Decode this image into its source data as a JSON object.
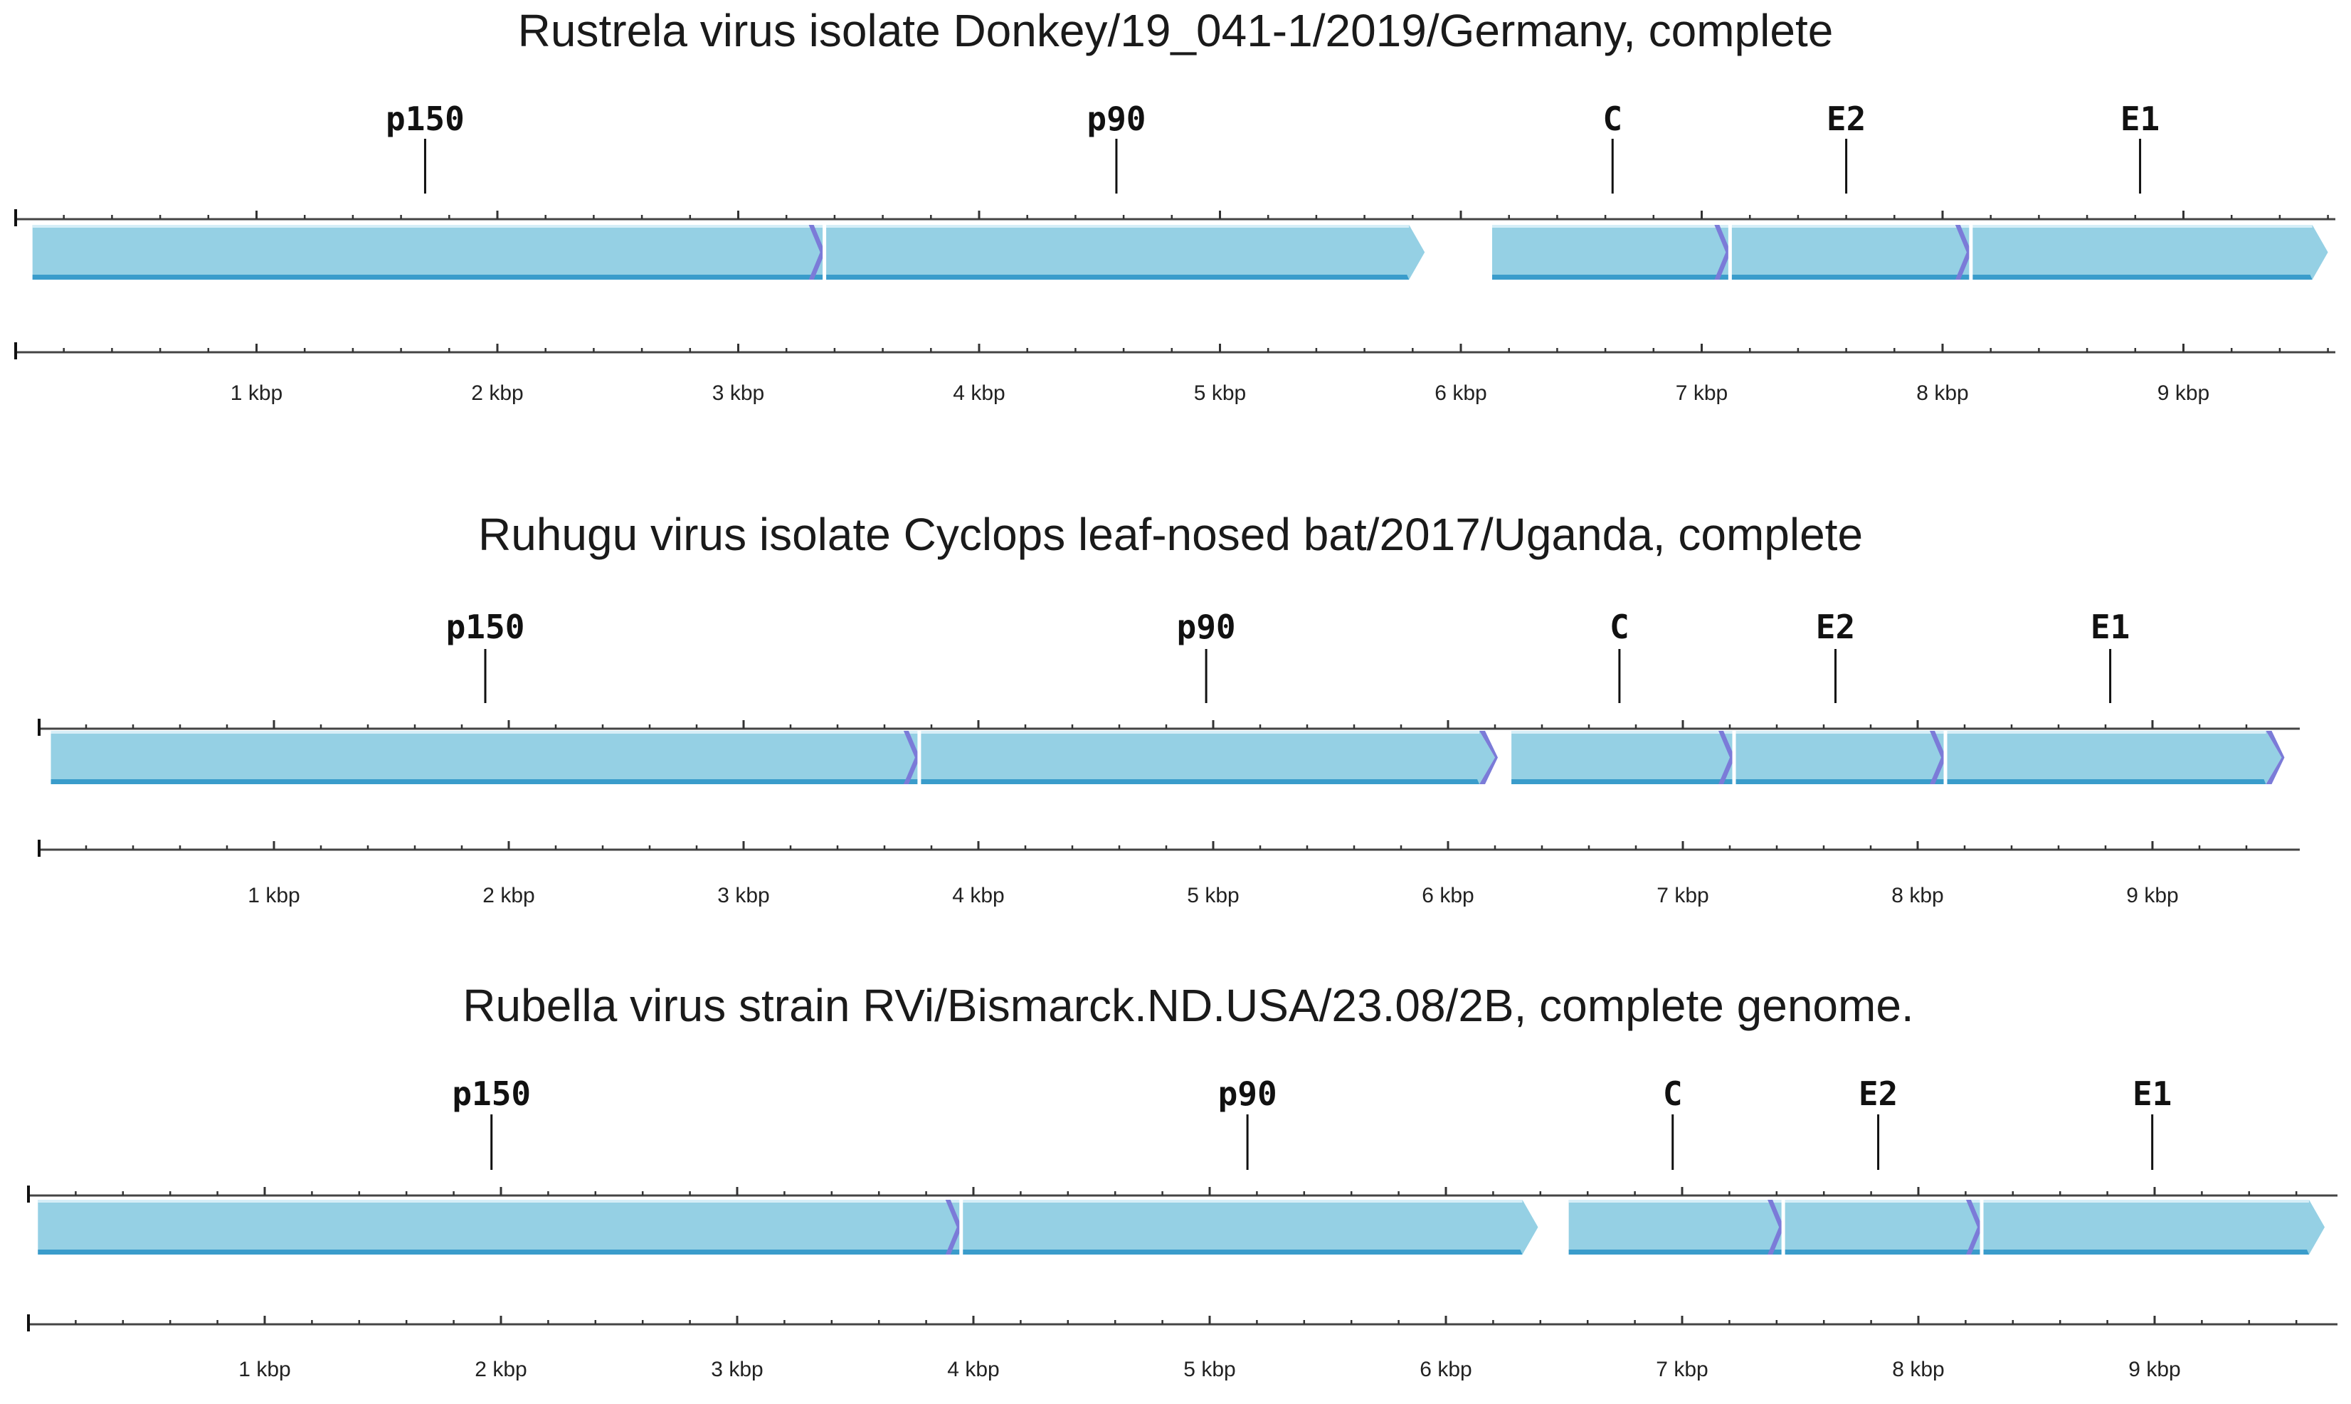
{
  "figure": {
    "colors": {
      "gene_fill": "#95d0e4",
      "gene_edge": "#3a9ccb",
      "gene_highlight": "#d6eef7",
      "junction": "#7b7bd8",
      "axis": "#444444"
    },
    "maps": [
      {
        "title": "Rustrela virus isolate Donkey/19_041-1/2019/Germany, complete",
        "genome_kbp": 9.65,
        "tick_labels": [
          "1 kbp",
          "2 kbp",
          "3 kbp",
          "4 kbp",
          "5 kbp",
          "6 kbp",
          "7 kbp",
          "8 kbp",
          "9 kbp"
        ],
        "tick_values_kbp": [
          1,
          2,
          3,
          4,
          5,
          6,
          7,
          8,
          9
        ],
        "orfs": [
          {
            "start_kbp": 0.07,
            "end_kbp": 5.85,
            "end_junction": false
          },
          {
            "start_kbp": 6.13,
            "end_kbp": 9.6,
            "end_junction": false
          }
        ],
        "genes": [
          {
            "label": "p150",
            "start_kbp": 0.07,
            "end_kbp": 3.34,
            "label_kbp": 1.7
          },
          {
            "label": "p90",
            "start_kbp": 3.34,
            "end_kbp": 5.85,
            "label_kbp": 4.57
          },
          {
            "label": "C",
            "start_kbp": 6.13,
            "end_kbp": 7.1,
            "label_kbp": 6.63
          },
          {
            "label": "E2",
            "start_kbp": 7.1,
            "end_kbp": 8.1,
            "label_kbp": 7.6
          },
          {
            "label": "E1",
            "start_kbp": 8.1,
            "end_kbp": 9.6,
            "label_kbp": 8.82
          }
        ]
      },
      {
        "title": "Ruhugu virus isolate Cyclops leaf-nosed bat/2017/Uganda, complete",
        "genome_kbp": 9.78,
        "tick_labels": [
          "1 kbp",
          "2 kbp",
          "3 kbp",
          "4 kbp",
          "5 kbp",
          "6 kbp",
          "7 kbp",
          "8 kbp",
          "9 kbp"
        ],
        "tick_values_kbp": [
          1,
          2,
          3,
          4,
          5,
          6,
          7,
          8,
          9
        ],
        "orfs": [
          {
            "start_kbp": 0.05,
            "end_kbp": 6.2,
            "end_junction": true
          },
          {
            "start_kbp": 6.27,
            "end_kbp": 9.55,
            "end_junction": true
          }
        ],
        "genes": [
          {
            "label": "p150",
            "start_kbp": 0.05,
            "end_kbp": 3.73,
            "label_kbp": 1.9
          },
          {
            "label": "p90",
            "start_kbp": 3.73,
            "end_kbp": 6.2,
            "label_kbp": 4.97
          },
          {
            "label": "C",
            "start_kbp": 6.27,
            "end_kbp": 7.2,
            "label_kbp": 6.73
          },
          {
            "label": "E2",
            "start_kbp": 7.2,
            "end_kbp": 8.1,
            "label_kbp": 7.65
          },
          {
            "label": "E1",
            "start_kbp": 8.1,
            "end_kbp": 9.55,
            "label_kbp": 8.82
          }
        ]
      },
      {
        "title": "Rubella virus strain RVi/Bismarck.ND.USA/23.08/2B, complete genome.",
        "genome_kbp": 9.76,
        "tick_labels": [
          "1 kbp",
          "2 kbp",
          "3 kbp",
          "4 kbp",
          "5 kbp",
          "6 kbp",
          "7 kbp",
          "8 kbp",
          "9 kbp"
        ],
        "tick_values_kbp": [
          1,
          2,
          3,
          4,
          5,
          6,
          7,
          8,
          9
        ],
        "orfs": [
          {
            "start_kbp": 0.04,
            "end_kbp": 6.39,
            "end_junction": false
          },
          {
            "start_kbp": 6.52,
            "end_kbp": 9.72,
            "end_junction": false
          }
        ],
        "genes": [
          {
            "label": "p150",
            "start_kbp": 0.04,
            "end_kbp": 3.93,
            "label_kbp": 1.96
          },
          {
            "label": "p90",
            "start_kbp": 3.93,
            "end_kbp": 6.39,
            "label_kbp": 5.16
          },
          {
            "label": "C",
            "start_kbp": 6.52,
            "end_kbp": 7.41,
            "label_kbp": 6.96
          },
          {
            "label": "E2",
            "start_kbp": 7.41,
            "end_kbp": 8.25,
            "label_kbp": 7.83
          },
          {
            "label": "E1",
            "start_kbp": 8.25,
            "end_kbp": 9.72,
            "label_kbp": 8.99
          }
        ]
      }
    ]
  }
}
